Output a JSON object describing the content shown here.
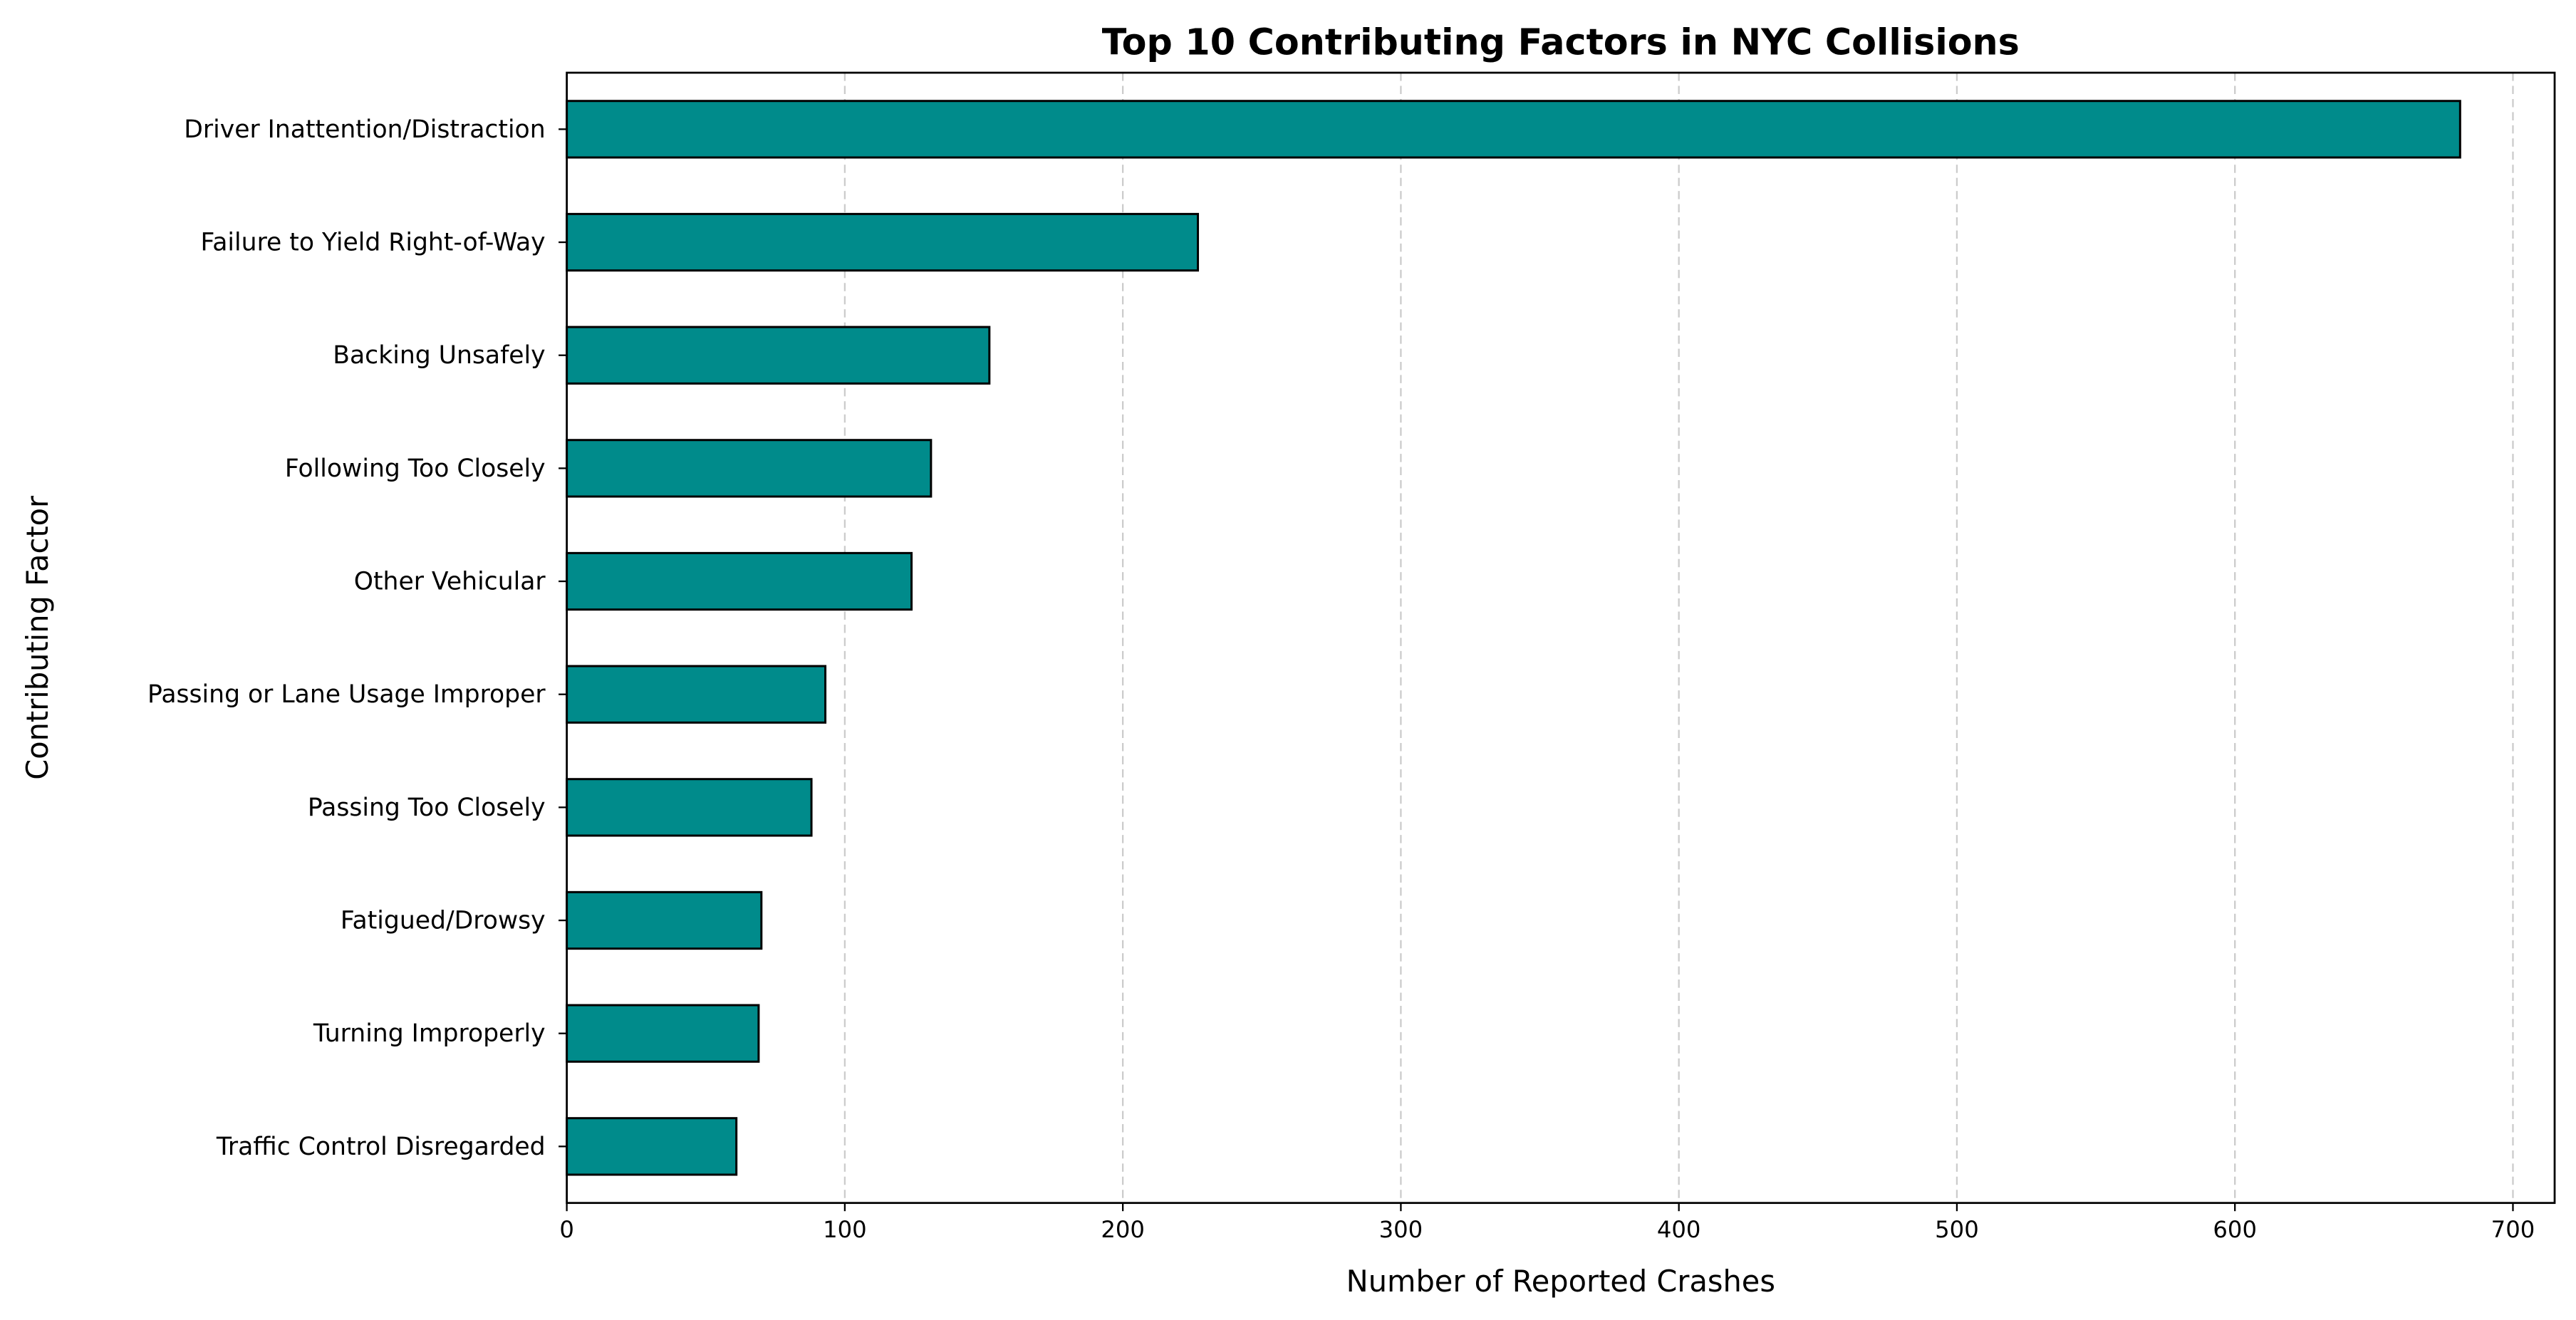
{
  "chart_data": {
    "type": "bar",
    "orientation": "horizontal",
    "title": "Top 10 Contributing Factors in NYC Collisions",
    "xlabel": "Number of Reported Crashes",
    "ylabel": "Contributing Factor",
    "categories": [
      "Driver Inattention/Distraction",
      "Failure to Yield Right-of-Way",
      "Backing Unsafely",
      "Following Too Closely",
      "Other Vehicular",
      "Passing or Lane Usage Improper",
      "Passing Too Closely",
      "Fatigued/Drowsy",
      "Turning Improperly",
      "Traffic Control Disregarded"
    ],
    "values": [
      681,
      227,
      152,
      131,
      124,
      93,
      88,
      70,
      69,
      61
    ],
    "xlim": [
      0,
      715
    ],
    "xticks": [
      0,
      100,
      200,
      300,
      400,
      500,
      600,
      700
    ],
    "grid": "x-dashed",
    "colors": {
      "bar": "#008b8b",
      "edge": "#000000",
      "grid": "#cccccc"
    }
  }
}
